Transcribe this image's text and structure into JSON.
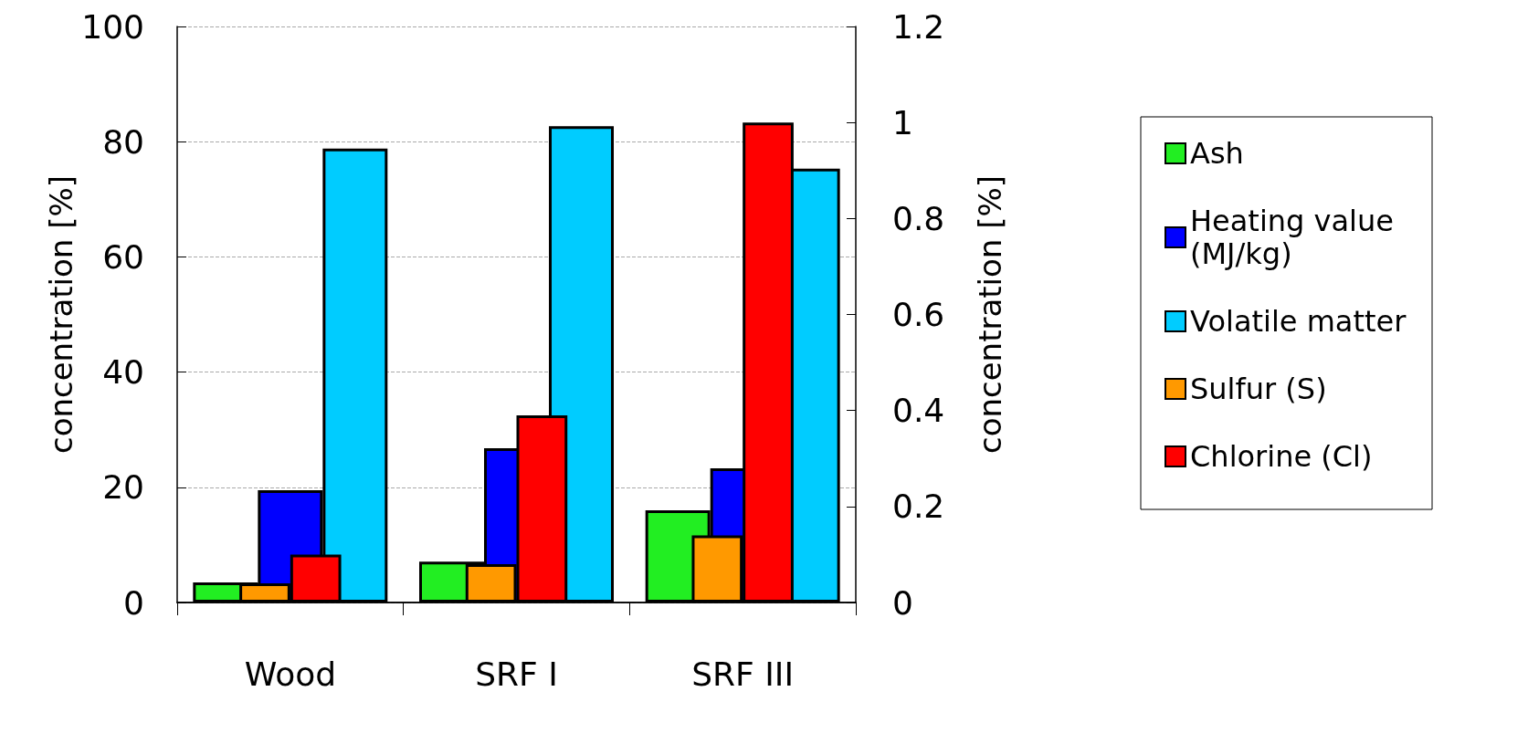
{
  "chart_data": {
    "type": "bar",
    "categories": [
      "Wood",
      "SRF I",
      "SRF III"
    ],
    "ylabel": "concentration [%]",
    "y2label": "concentration [%]",
    "series": [
      {
        "name": "Ash",
        "color": "#22ee22",
        "values": [
          3.5,
          7.1,
          16
        ]
      },
      {
        "name": "Heating value (MJ/kg)",
        "color": "#0000ff",
        "values": [
          19.5,
          26.8,
          23.3
        ]
      },
      {
        "name": "Volatile matter",
        "color": "#00ccff",
        "values": [
          78.8,
          82.7,
          75.3
        ]
      },
      {
        "name": "Sulfur (S)",
        "color": "#ff9900",
        "axis": "y2",
        "values": [
          0.04,
          0.08,
          0.14
        ]
      },
      {
        "name": "Chlorine (Cl)",
        "color": "#ff0000",
        "axis": "y2",
        "values": [
          0.1,
          0.39,
          1.0
        ]
      }
    ],
    "ylim": [
      0,
      100
    ],
    "yticks": [
      0,
      20,
      40,
      60,
      80,
      100
    ],
    "y2lim": [
      0,
      1.2
    ],
    "y2ticks": [
      0,
      0.2,
      0.4,
      0.6,
      0.8,
      1,
      1.2
    ],
    "grid": "y",
    "legend": "right"
  }
}
